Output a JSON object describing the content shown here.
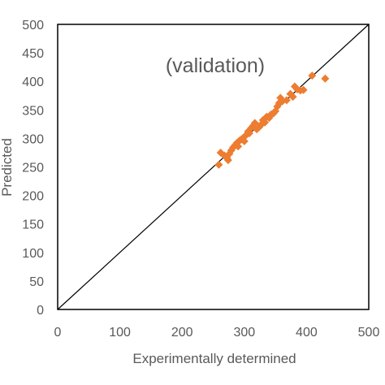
{
  "chart_data": {
    "type": "scatter",
    "title": "",
    "annotation": "(validation)",
    "xlabel": "Experimentally determined",
    "ylabel": "Predicted",
    "xlim": [
      0,
      500
    ],
    "ylim": [
      0,
      500
    ],
    "xticks": [
      "0",
      "100",
      "200",
      "300",
      "400",
      "500"
    ],
    "yticks": [
      "0",
      "50",
      "100",
      "150",
      "200",
      "250",
      "300",
      "350",
      "400",
      "450",
      "500"
    ],
    "grid": false,
    "reference_line": {
      "from": [
        0,
        0
      ],
      "to": [
        500,
        500
      ],
      "color": "#000000"
    },
    "series": [
      {
        "marker": "diamond",
        "color": "#ED7D31",
        "points": [
          [
            259,
            254
          ],
          [
            262,
            275
          ],
          [
            268,
            270
          ],
          [
            272,
            266
          ],
          [
            274,
            262
          ],
          [
            276,
            273
          ],
          [
            279,
            279
          ],
          [
            282,
            284
          ],
          [
            285,
            288
          ],
          [
            288,
            292
          ],
          [
            290,
            286
          ],
          [
            292,
            296
          ],
          [
            295,
            298
          ],
          [
            298,
            301
          ],
          [
            300,
            295
          ],
          [
            303,
            306
          ],
          [
            306,
            312
          ],
          [
            308,
            309
          ],
          [
            311,
            318
          ],
          [
            314,
            322
          ],
          [
            317,
            327
          ],
          [
            320,
            316
          ],
          [
            324,
            320
          ],
          [
            327,
            324
          ],
          [
            330,
            332
          ],
          [
            333,
            328
          ],
          [
            336,
            338
          ],
          [
            340,
            336
          ],
          [
            343,
            342
          ],
          [
            347,
            344
          ],
          [
            350,
            348
          ],
          [
            353,
            356
          ],
          [
            356,
            362
          ],
          [
            358,
            371
          ],
          [
            361,
            365
          ],
          [
            368,
            367
          ],
          [
            374,
            378
          ],
          [
            378,
            373
          ],
          [
            381,
            391
          ],
          [
            385,
            386
          ],
          [
            390,
            384
          ],
          [
            395,
            385
          ],
          [
            409,
            410
          ],
          [
            430,
            405
          ]
        ]
      }
    ]
  }
}
